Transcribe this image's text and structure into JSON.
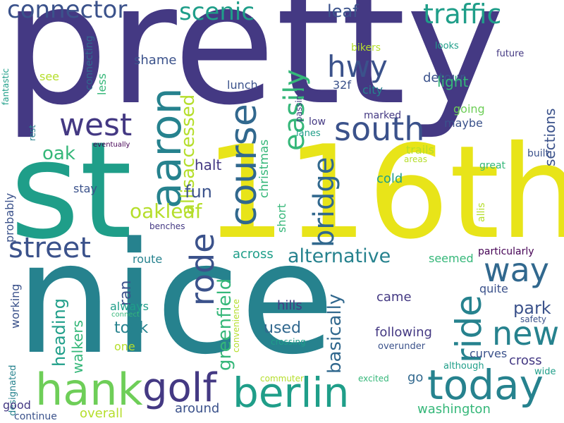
{
  "palette": {
    "dark_purple": "#443983",
    "indigo": "#3b528b",
    "steel_blue": "#31688e",
    "teal": "#26828e",
    "teal_green": "#1f9e89",
    "green": "#35b779",
    "light_green": "#6ece58",
    "yellow_green": "#b5de2b",
    "yellow": "#e8e419",
    "deep_purple": "#440154"
  },
  "words": [
    "pretty",
    "st",
    "116th",
    "nice",
    "hank",
    "golf",
    "berlin",
    "today",
    "connector",
    "scenic",
    "traffic",
    "leaf",
    "hwy",
    "south",
    "west",
    "aaron",
    "course",
    "easily",
    "bridge",
    "allisaccessed",
    "street",
    "oakleaf",
    "rode",
    "ride",
    "way",
    "new",
    "alternative",
    "oak",
    "fun",
    "halt",
    "christmas",
    "greenfield",
    "basically",
    "park",
    "used",
    "took",
    "heading",
    "walkers",
    "around",
    "washington",
    "shame",
    "bikers",
    "looks",
    "future",
    "see",
    "less",
    "connecting",
    "fantastic",
    "lunch",
    "detour",
    "light",
    "32f",
    "city",
    "going",
    "maybe",
    "marked",
    "passing",
    "low",
    "lanes",
    "sections",
    "trails",
    "areas",
    "built",
    "great",
    "cold",
    "stay",
    "short",
    "probably",
    "allis",
    "across",
    "seemed",
    "particularly",
    "route",
    "ran",
    "always",
    "quite",
    "hills",
    "came",
    "following",
    "curves",
    "safety",
    "cross",
    "one",
    "working",
    "designated",
    "convenience",
    "connect",
    "crossing",
    "overunder",
    "although",
    "wide",
    "commuter",
    "excited",
    "go",
    "good",
    "continue",
    "overall",
    "rest",
    "eventually",
    "benches"
  ]
}
